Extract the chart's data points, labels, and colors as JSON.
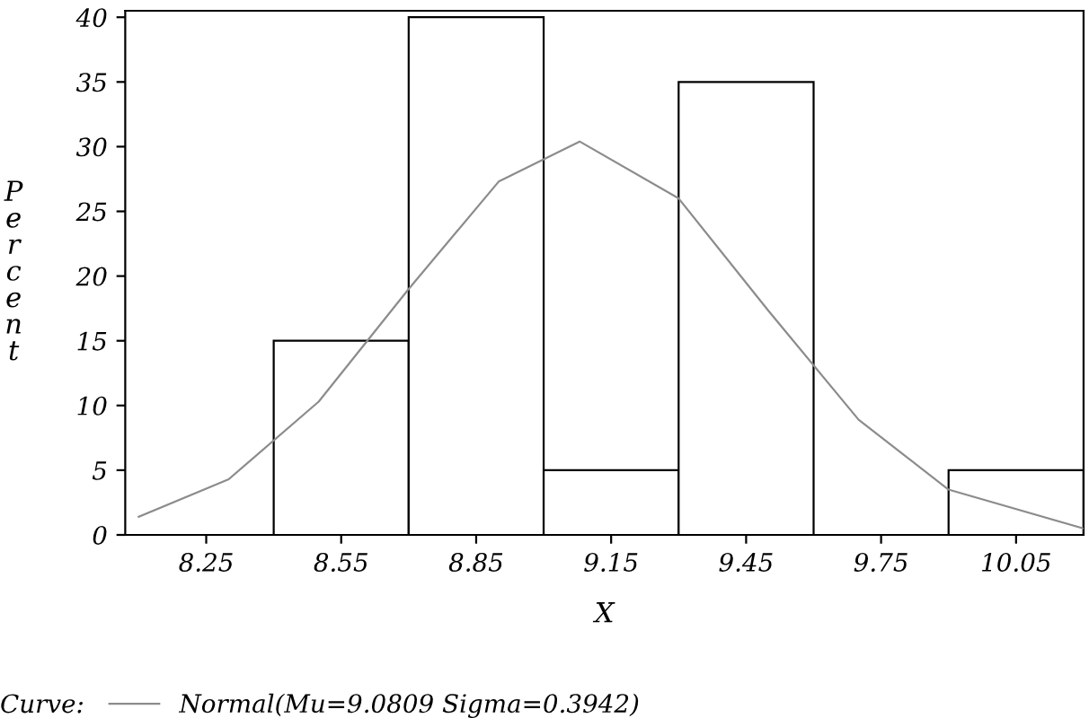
{
  "chart_data": {
    "type": "histogram",
    "xlabel": "X",
    "ylabel": "Percent",
    "legend_title": "Curve:",
    "legend": "bottom",
    "bins": [
      8.1,
      8.4,
      8.7,
      9.0,
      9.3,
      9.6,
      9.9,
      10.2
    ],
    "values": [
      0,
      15,
      40,
      5,
      35,
      0,
      5
    ],
    "color": "#ffffff",
    "series": [
      {
        "type": "line",
        "name": "Normal(Mu=9.0809 Sigma=0.3942)",
        "color": "#8c8c8c",
        "x": [
          8.1,
          8.3,
          8.5,
          8.7,
          8.9,
          9.08,
          9.3,
          9.5,
          9.7,
          9.9,
          10.2
        ],
        "values": [
          1.4,
          4.3,
          10.3,
          19.0,
          27.3,
          30.4,
          26.0,
          17.3,
          8.9,
          3.5,
          0.5
        ]
      }
    ],
    "xlim": [
      8.07,
      10.2
    ],
    "xticks": [
      8.25,
      8.55,
      8.85,
      9.15,
      9.45,
      9.75,
      10.05
    ],
    "ylim": [
      0,
      40.5
    ],
    "yticks": [
      0,
      5,
      10,
      15,
      20,
      25,
      30,
      35,
      40
    ],
    "grid": false
  }
}
